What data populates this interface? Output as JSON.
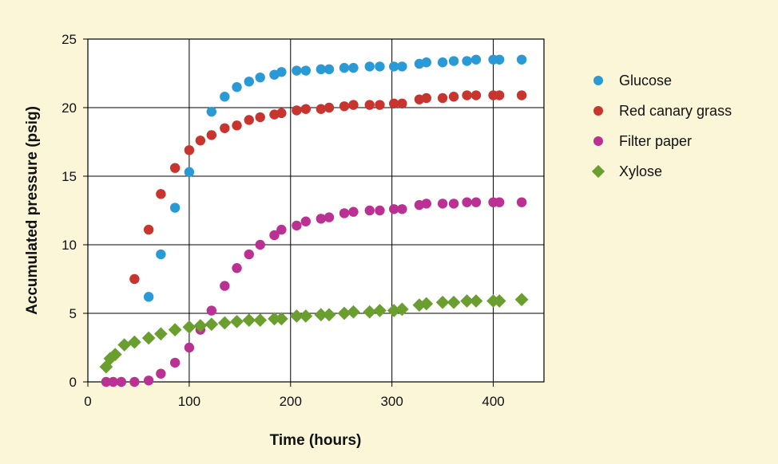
{
  "chart_data": {
    "type": "scatter",
    "xlabel": "Time (hours)",
    "ylabel": "Accumulated pressure (psig)",
    "xlim": [
      0,
      450
    ],
    "ylim": [
      0,
      25
    ],
    "xticks": [
      0,
      100,
      200,
      300,
      400
    ],
    "yticks": [
      0,
      5,
      10,
      15,
      20,
      25
    ],
    "grid": true,
    "background": "#fbf6d8",
    "plot_background": "#ffffff",
    "legend_position": "right",
    "series": [
      {
        "name": "Glucose",
        "marker": "circle",
        "color": "#2a9ad6",
        "points": [
          [
            60,
            6.2
          ],
          [
            72,
            9.3
          ],
          [
            86,
            12.7
          ],
          [
            100,
            15.3
          ],
          [
            122,
            19.7
          ],
          [
            135,
            20.8
          ],
          [
            147,
            21.5
          ],
          [
            159,
            21.9
          ],
          [
            170,
            22.2
          ],
          [
            184,
            22.4
          ],
          [
            191,
            22.6
          ],
          [
            206,
            22.7
          ],
          [
            215,
            22.7
          ],
          [
            230,
            22.8
          ],
          [
            238,
            22.8
          ],
          [
            253,
            22.9
          ],
          [
            262,
            22.9
          ],
          [
            278,
            23.0
          ],
          [
            288,
            23.0
          ],
          [
            302,
            23.0
          ],
          [
            310,
            23.0
          ],
          [
            327,
            23.2
          ],
          [
            334,
            23.3
          ],
          [
            350,
            23.3
          ],
          [
            361,
            23.4
          ],
          [
            374,
            23.4
          ],
          [
            383,
            23.5
          ],
          [
            400,
            23.5
          ],
          [
            406,
            23.5
          ],
          [
            428,
            23.5
          ]
        ]
      },
      {
        "name": "Red canary grass",
        "marker": "circle",
        "color": "#c8342e",
        "points": [
          [
            46,
            7.5
          ],
          [
            60,
            11.1
          ],
          [
            72,
            13.7
          ],
          [
            86,
            15.6
          ],
          [
            100,
            16.9
          ],
          [
            111,
            17.6
          ],
          [
            122,
            18.0
          ],
          [
            135,
            18.5
          ],
          [
            147,
            18.7
          ],
          [
            159,
            19.1
          ],
          [
            170,
            19.3
          ],
          [
            184,
            19.5
          ],
          [
            191,
            19.6
          ],
          [
            206,
            19.8
          ],
          [
            215,
            19.9
          ],
          [
            230,
            19.9
          ],
          [
            238,
            20.0
          ],
          [
            253,
            20.1
          ],
          [
            262,
            20.2
          ],
          [
            278,
            20.2
          ],
          [
            288,
            20.2
          ],
          [
            302,
            20.3
          ],
          [
            310,
            20.3
          ],
          [
            327,
            20.6
          ],
          [
            334,
            20.7
          ],
          [
            350,
            20.7
          ],
          [
            361,
            20.8
          ],
          [
            374,
            20.9
          ],
          [
            383,
            20.9
          ],
          [
            400,
            20.9
          ],
          [
            406,
            20.9
          ],
          [
            428,
            20.9
          ]
        ]
      },
      {
        "name": "Filter paper",
        "marker": "circle",
        "color": "#bb3193",
        "points": [
          [
            18,
            0
          ],
          [
            25,
            0
          ],
          [
            33,
            0
          ],
          [
            46,
            0
          ],
          [
            60,
            0.1
          ],
          [
            72,
            0.6
          ],
          [
            86,
            1.4
          ],
          [
            100,
            2.5
          ],
          [
            111,
            3.8
          ],
          [
            122,
            5.2
          ],
          [
            135,
            7.0
          ],
          [
            147,
            8.3
          ],
          [
            159,
            9.3
          ],
          [
            170,
            10.0
          ],
          [
            184,
            10.7
          ],
          [
            191,
            11.1
          ],
          [
            206,
            11.4
          ],
          [
            215,
            11.7
          ],
          [
            230,
            11.9
          ],
          [
            238,
            12.0
          ],
          [
            253,
            12.3
          ],
          [
            262,
            12.4
          ],
          [
            278,
            12.5
          ],
          [
            288,
            12.5
          ],
          [
            302,
            12.6
          ],
          [
            310,
            12.6
          ],
          [
            327,
            12.9
          ],
          [
            334,
            13.0
          ],
          [
            350,
            13.0
          ],
          [
            361,
            13.0
          ],
          [
            374,
            13.1
          ],
          [
            383,
            13.1
          ],
          [
            400,
            13.1
          ],
          [
            406,
            13.1
          ],
          [
            428,
            13.1
          ]
        ]
      },
      {
        "name": "Xylose",
        "marker": "diamond",
        "color": "#6a9e2f",
        "points": [
          [
            18,
            1.1
          ],
          [
            22,
            1.7
          ],
          [
            27,
            2.0
          ],
          [
            36,
            2.7
          ],
          [
            46,
            2.9
          ],
          [
            60,
            3.2
          ],
          [
            72,
            3.5
          ],
          [
            86,
            3.8
          ],
          [
            100,
            4.0
          ],
          [
            111,
            4.1
          ],
          [
            122,
            4.2
          ],
          [
            135,
            4.3
          ],
          [
            147,
            4.4
          ],
          [
            159,
            4.5
          ],
          [
            170,
            4.5
          ],
          [
            184,
            4.6
          ],
          [
            191,
            4.6
          ],
          [
            206,
            4.8
          ],
          [
            215,
            4.8
          ],
          [
            230,
            4.9
          ],
          [
            238,
            4.9
          ],
          [
            253,
            5.0
          ],
          [
            262,
            5.1
          ],
          [
            278,
            5.1
          ],
          [
            288,
            5.2
          ],
          [
            302,
            5.2
          ],
          [
            310,
            5.3
          ],
          [
            327,
            5.6
          ],
          [
            334,
            5.7
          ],
          [
            350,
            5.8
          ],
          [
            361,
            5.8
          ],
          [
            374,
            5.9
          ],
          [
            383,
            5.9
          ],
          [
            400,
            5.9
          ],
          [
            406,
            5.9
          ],
          [
            428,
            6.0
          ]
        ]
      }
    ]
  }
}
